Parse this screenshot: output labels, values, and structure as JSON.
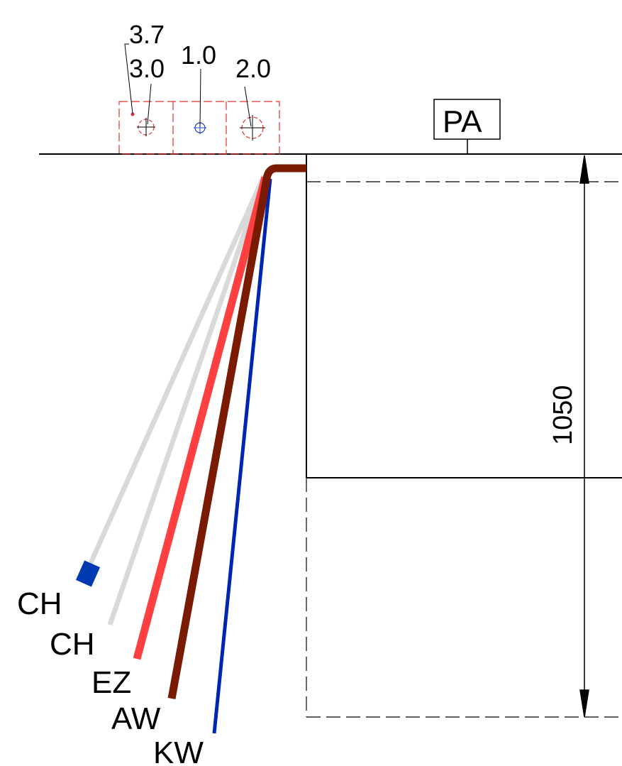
{
  "diagram": {
    "dimensions": {
      "height_label": "1050"
    },
    "zone_box": {
      "label": "PA"
    },
    "fittings": {
      "labels": {
        "first": "3.7",
        "second": "3.0",
        "third": "1.0",
        "fourth": "2.0"
      }
    },
    "pipes": [
      {
        "label": "CH",
        "color": "#003ab0"
      },
      {
        "label": "CH",
        "color": "#d9d9d9"
      },
      {
        "label": "EZ",
        "color": "#ff4040"
      },
      {
        "label": "AW",
        "color": "#7a1a00"
      },
      {
        "label": "KW",
        "color": "#0025b0"
      }
    ],
    "colors": {
      "line": "#000000",
      "dashed_red": "#e03030",
      "blue_symbol": "#2040c0",
      "gray_pipe": "#d9d9d9"
    }
  }
}
